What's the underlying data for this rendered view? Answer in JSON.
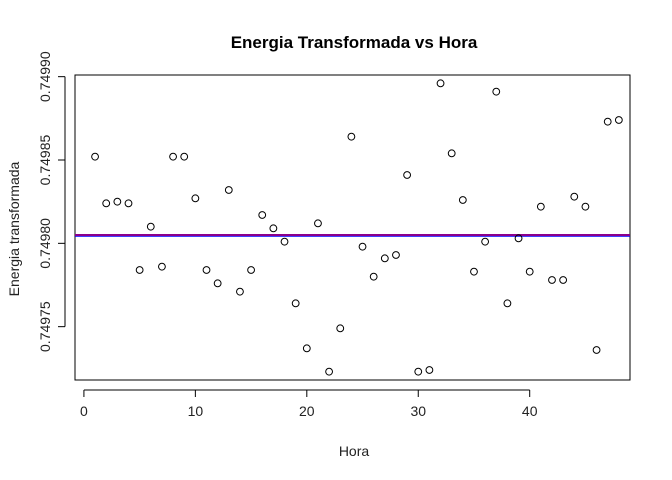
{
  "chart_data": {
    "type": "scatter",
    "title": "Energia Transformada vs Hora",
    "xlabel": "Hora",
    "ylabel": "Energia transformada",
    "xlim": [
      -0.8,
      49.0
    ],
    "ylim": [
      0.749718,
      0.749901
    ],
    "xticks": [
      0,
      10,
      20,
      30,
      40
    ],
    "xtick_labels": [
      "0",
      "10",
      "20",
      "30",
      "40"
    ],
    "yticks": [
      0.74975,
      0.7498,
      0.74985,
      0.7499
    ],
    "ytick_labels": [
      "0.74975",
      "0.74980",
      "0.74985",
      "0.74990"
    ],
    "grid": false,
    "x": [
      1,
      2,
      3,
      4,
      5,
      6,
      7,
      8,
      9,
      10,
      11,
      12,
      13,
      14,
      15,
      16,
      17,
      18,
      19,
      20,
      21,
      22,
      23,
      24,
      25,
      26,
      27,
      28,
      29,
      30,
      31,
      32,
      33,
      34,
      35,
      36,
      37,
      38,
      39,
      40,
      41,
      42,
      43,
      44,
      45,
      46,
      47,
      48
    ],
    "y": [
      0.749852,
      0.749824,
      0.749825,
      0.749824,
      0.749784,
      0.74981,
      0.749786,
      0.749852,
      0.749852,
      0.749827,
      0.749784,
      0.749776,
      0.749832,
      0.749771,
      0.749784,
      0.749817,
      0.749809,
      0.749801,
      0.749764,
      0.749737,
      0.749812,
      0.749723,
      0.749749,
      0.749864,
      0.749798,
      0.74978,
      0.749791,
      0.749793,
      0.749841,
      0.749723,
      0.749724,
      0.749896,
      0.749854,
      0.749826,
      0.749783,
      0.749801,
      0.749891,
      0.749764,
      0.749803,
      0.749783,
      0.749822,
      0.749778,
      0.749778,
      0.749828,
      0.749822,
      0.749736,
      0.749873,
      0.749874
    ],
    "hline": 0.749805,
    "hline_color": "#8B008B",
    "hline2_color": "#0000FF"
  }
}
